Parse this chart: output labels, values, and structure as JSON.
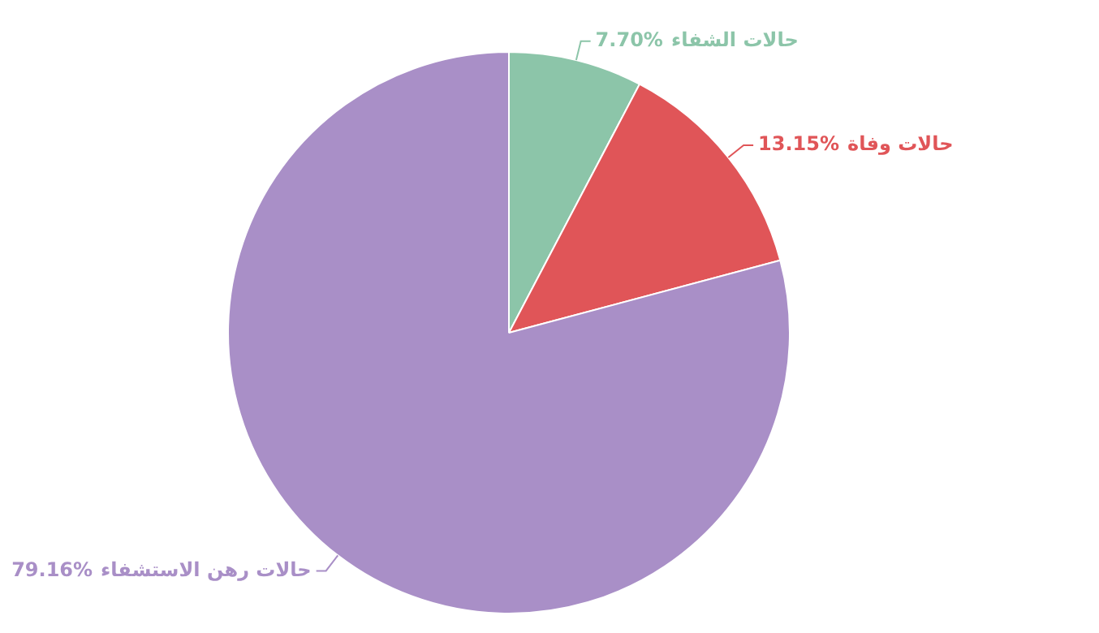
{
  "chart_data": {
    "type": "pie",
    "categories": [
      "حالات الشفاء",
      "حالات وفاة",
      "حالات رهن الاستشفاء"
    ],
    "values": [
      7.7,
      13.15,
      79.16
    ],
    "colors": [
      "#8cc5a9",
      "#e05558",
      "#a98fc7"
    ],
    "value_labels": [
      "7.70%",
      "13.15%",
      "79.16%"
    ]
  }
}
